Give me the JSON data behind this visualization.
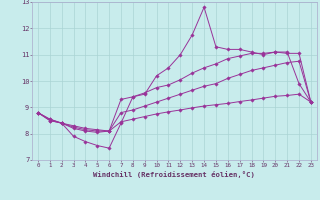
{
  "xlabel": "Windchill (Refroidissement éolien,°C)",
  "ylabel": "",
  "bg_color": "#c8ecec",
  "grid_color": "#aad4d4",
  "line_color": "#993399",
  "xlim": [
    -0.5,
    23.5
  ],
  "ylim": [
    7,
    13
  ],
  "xticks": [
    0,
    1,
    2,
    3,
    4,
    5,
    6,
    7,
    8,
    9,
    10,
    11,
    12,
    13,
    14,
    15,
    16,
    17,
    18,
    19,
    20,
    21,
    22,
    23
  ],
  "yticks": [
    7,
    8,
    9,
    10,
    11,
    12,
    13
  ],
  "series": [
    {
      "x": [
        0,
        1,
        2,
        3,
        4,
        5,
        6,
        7,
        8,
        9,
        10,
        11,
        12,
        13,
        14,
        15,
        16,
        17,
        18,
        19,
        20,
        21,
        22,
        23
      ],
      "y": [
        8.8,
        8.5,
        8.4,
        7.9,
        7.7,
        7.55,
        7.45,
        8.4,
        9.4,
        9.5,
        10.2,
        10.5,
        11.0,
        11.75,
        12.8,
        11.3,
        11.2,
        11.2,
        11.1,
        11.0,
        11.1,
        11.1,
        9.9,
        9.2
      ]
    },
    {
      "x": [
        0,
        1,
        2,
        3,
        4,
        5,
        6,
        7,
        8,
        9,
        10,
        11,
        12,
        13,
        14,
        15,
        16,
        17,
        18,
        19,
        20,
        21,
        22,
        23
      ],
      "y": [
        8.8,
        8.5,
        8.4,
        8.2,
        8.1,
        8.05,
        8.1,
        9.3,
        9.4,
        9.55,
        9.75,
        9.85,
        10.05,
        10.3,
        10.5,
        10.65,
        10.85,
        10.95,
        11.05,
        11.05,
        11.1,
        11.05,
        11.05,
        9.2
      ]
    },
    {
      "x": [
        0,
        1,
        2,
        3,
        4,
        5,
        6,
        7,
        8,
        9,
        10,
        11,
        12,
        13,
        14,
        15,
        16,
        17,
        18,
        19,
        20,
        21,
        22,
        23
      ],
      "y": [
        8.8,
        8.55,
        8.4,
        8.25,
        8.15,
        8.1,
        8.1,
        8.8,
        8.9,
        9.05,
        9.2,
        9.35,
        9.5,
        9.65,
        9.8,
        9.9,
        10.1,
        10.25,
        10.4,
        10.5,
        10.6,
        10.7,
        10.75,
        9.2
      ]
    },
    {
      "x": [
        0,
        1,
        2,
        3,
        4,
        5,
        6,
        7,
        8,
        9,
        10,
        11,
        12,
        13,
        14,
        15,
        16,
        17,
        18,
        19,
        20,
        21,
        22,
        23
      ],
      "y": [
        8.8,
        8.55,
        8.4,
        8.3,
        8.2,
        8.15,
        8.1,
        8.45,
        8.55,
        8.65,
        8.75,
        8.83,
        8.9,
        8.98,
        9.05,
        9.1,
        9.15,
        9.22,
        9.28,
        9.35,
        9.42,
        9.45,
        9.5,
        9.2
      ]
    }
  ]
}
